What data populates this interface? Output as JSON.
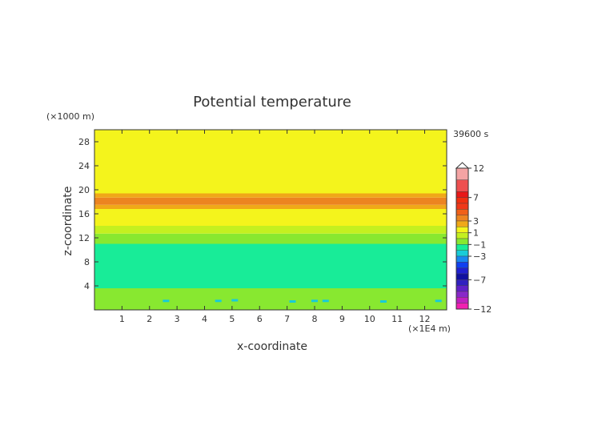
{
  "chart_data": {
    "type": "heatmap",
    "title": "Potential temperature",
    "xlabel": "x-coordinate",
    "ylabel": "z-coordinate",
    "x_unit": "(×1E4 m)",
    "y_unit": "(×1000 m)",
    "time_label": "39600 s",
    "xlim": [
      0,
      12.8
    ],
    "ylim": [
      0,
      30
    ],
    "x_ticks": [
      1,
      2,
      3,
      4,
      5,
      6,
      7,
      8,
      9,
      10,
      11,
      12
    ],
    "y_ticks": [
      4,
      8,
      12,
      16,
      20,
      24,
      28
    ],
    "bands": [
      {
        "z0": 0.0,
        "z1": 3.6,
        "color": "#88e830"
      },
      {
        "z0": 3.6,
        "z1": 11.0,
        "color": "#18ec98"
      },
      {
        "z0": 11.0,
        "z1": 12.7,
        "color": "#88e830"
      },
      {
        "z0": 12.7,
        "z1": 14.0,
        "color": "#c4f020"
      },
      {
        "z0": 14.0,
        "z1": 16.8,
        "color": "#f4f41c"
      },
      {
        "z0": 16.8,
        "z1": 17.5,
        "color": "#f0a818"
      },
      {
        "z0": 17.5,
        "z1": 18.7,
        "color": "#ec8420"
      },
      {
        "z0": 18.7,
        "z1": 19.4,
        "color": "#f0a818"
      },
      {
        "z0": 19.4,
        "z1": 30.0,
        "color": "#f4f41c"
      }
    ],
    "patches": [
      {
        "x": 2.6,
        "z": 1.5,
        "color": "#18ccd8"
      },
      {
        "x": 4.5,
        "z": 1.5,
        "color": "#18ccd8"
      },
      {
        "x": 5.1,
        "z": 1.6,
        "color": "#18ccd8"
      },
      {
        "x": 7.2,
        "z": 1.4,
        "color": "#18ccd8"
      },
      {
        "x": 8.0,
        "z": 1.5,
        "color": "#18ccd8"
      },
      {
        "x": 8.4,
        "z": 1.5,
        "color": "#18ccd8"
      },
      {
        "x": 10.5,
        "z": 1.4,
        "color": "#18ccd8"
      },
      {
        "x": 12.5,
        "z": 1.5,
        "color": "#18ccd8"
      }
    ],
    "colorbar": {
      "labels": [
        {
          "value": 12,
          "text": "12"
        },
        {
          "value": 7,
          "text": "7"
        },
        {
          "value": 3,
          "text": "3"
        },
        {
          "value": 1,
          "text": "1"
        },
        {
          "value": -1,
          "text": "−1"
        },
        {
          "value": -3,
          "text": "−3"
        },
        {
          "value": -7,
          "text": "−7"
        },
        {
          "value": -12,
          "text": "−12"
        }
      ],
      "levels": [
        {
          "lo": 10,
          "hi": 12,
          "color": "#f4a4a4"
        },
        {
          "lo": 8,
          "hi": 10,
          "color": "#ee5050"
        },
        {
          "lo": 7,
          "hi": 8,
          "color": "#e81818"
        },
        {
          "lo": 6,
          "hi": 7,
          "color": "#f03010"
        },
        {
          "lo": 5,
          "hi": 6,
          "color": "#f03818"
        },
        {
          "lo": 4,
          "hi": 5,
          "color": "#f06018"
        },
        {
          "lo": 3,
          "hi": 4,
          "color": "#ec8420"
        },
        {
          "lo": 2,
          "hi": 3,
          "color": "#f0a818"
        },
        {
          "lo": 1,
          "hi": 2,
          "color": "#f4f41c"
        },
        {
          "lo": 0,
          "hi": 1,
          "color": "#c4f020"
        },
        {
          "lo": -1,
          "hi": 0,
          "color": "#88e830"
        },
        {
          "lo": -2,
          "hi": -1,
          "color": "#18ec98"
        },
        {
          "lo": -3,
          "hi": -2,
          "color": "#18ccd8"
        },
        {
          "lo": -4,
          "hi": -3,
          "color": "#1888f0"
        },
        {
          "lo": -5,
          "hi": -4,
          "color": "#1040f0"
        },
        {
          "lo": -6,
          "hi": -5,
          "color": "#2020d0"
        },
        {
          "lo": -7,
          "hi": -6,
          "color": "#1010a0"
        },
        {
          "lo": -8,
          "hi": -7,
          "color": "#3020c0"
        },
        {
          "lo": -9,
          "hi": -8,
          "color": "#6020c8"
        },
        {
          "lo": -10,
          "hi": -9,
          "color": "#8828c8"
        },
        {
          "lo": -11,
          "hi": -10,
          "color": "#c020c0"
        },
        {
          "lo": -12,
          "hi": -11,
          "color": "#f020b0"
        }
      ]
    }
  }
}
